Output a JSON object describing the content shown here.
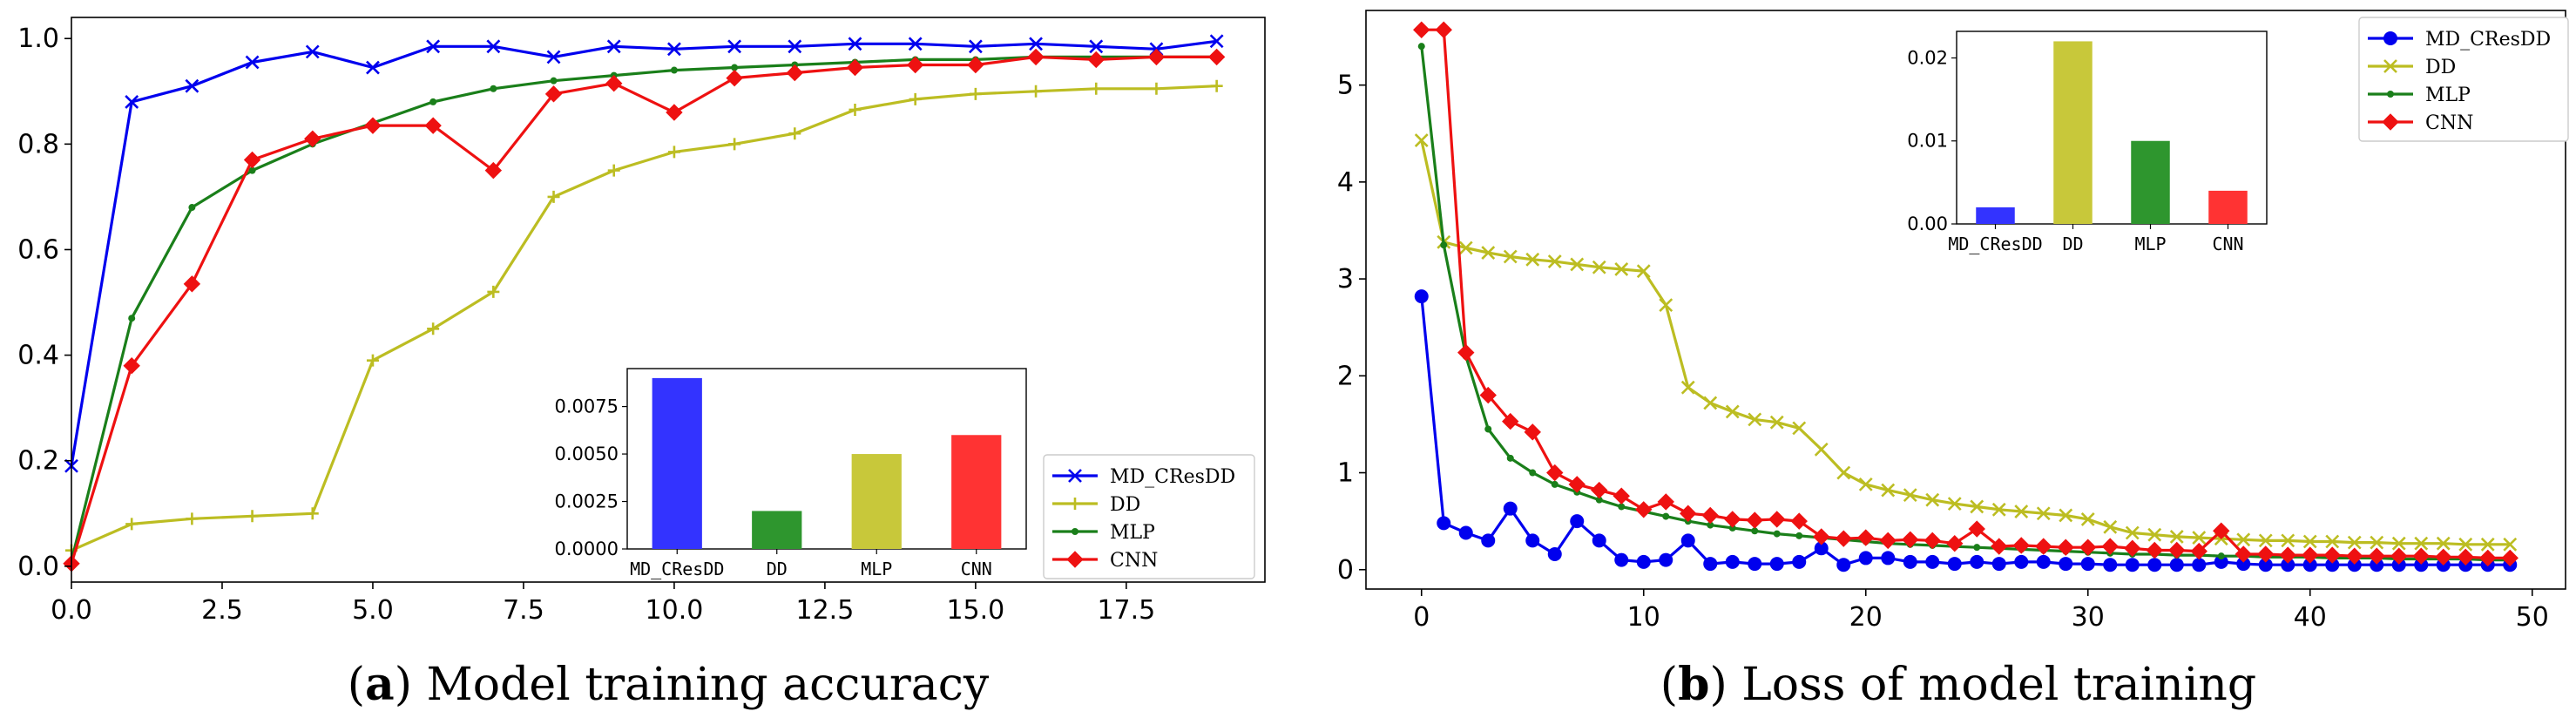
{
  "colors": {
    "MD_CResDD": "#0000ee",
    "DD": "#bcbd22",
    "MLP": "#1a7f1a",
    "CNN": "#ee1111"
  },
  "chart_data": [
    {
      "id": "accuracy",
      "type": "line",
      "caption_letter": "a",
      "caption_open": "(",
      "caption_close": ")",
      "caption_text": " Model training accuracy",
      "xlim": [
        0,
        19.8
      ],
      "ylim": [
        -0.03,
        1.04
      ],
      "xticks": [
        0,
        2.5,
        5,
        7.5,
        10,
        12.5,
        15,
        17.5
      ],
      "xtick_labels": [
        "0.0",
        "2.5",
        "5.0",
        "7.5",
        "10.0",
        "12.5",
        "15.0",
        "17.5"
      ],
      "yticks": [
        0,
        0.2,
        0.4,
        0.6,
        0.8,
        1.0
      ],
      "ytick_labels": [
        "0.0",
        "0.2",
        "0.4",
        "0.6",
        "0.8",
        "1.0"
      ],
      "legend_position": "lower-right",
      "series": [
        {
          "name": "MD_CResDD",
          "marker": "x",
          "x": [
            0,
            1,
            2,
            3,
            4,
            5,
            6,
            7,
            8,
            9,
            10,
            11,
            12,
            13,
            14,
            15,
            16,
            17,
            18,
            19
          ],
          "values": [
            0.19,
            0.88,
            0.91,
            0.955,
            0.975,
            0.945,
            0.985,
            0.985,
            0.965,
            0.985,
            0.98,
            0.985,
            0.985,
            0.99,
            0.99,
            0.985,
            0.99,
            0.985,
            0.98,
            0.995
          ]
        },
        {
          "name": "DD",
          "marker": "plus",
          "x": [
            0,
            1,
            2,
            3,
            4,
            5,
            6,
            7,
            8,
            9,
            10,
            11,
            12,
            13,
            14,
            15,
            16,
            17,
            18,
            19
          ],
          "values": [
            0.03,
            0.08,
            0.09,
            0.095,
            0.1,
            0.39,
            0.45,
            0.52,
            0.7,
            0.75,
            0.785,
            0.8,
            0.82,
            0.865,
            0.885,
            0.895,
            0.9,
            0.905,
            0.905,
            0.91
          ]
        },
        {
          "name": "MLP",
          "marker": "dot",
          "x": [
            0,
            1,
            2,
            3,
            4,
            5,
            6,
            7,
            8,
            9,
            10,
            11,
            12,
            13,
            14,
            15,
            16,
            17,
            18,
            19
          ],
          "values": [
            0.01,
            0.47,
            0.68,
            0.75,
            0.8,
            0.84,
            0.88,
            0.905,
            0.92,
            0.93,
            0.94,
            0.945,
            0.95,
            0.955,
            0.96,
            0.96,
            0.965,
            0.965,
            0.965,
            0.965
          ]
        },
        {
          "name": "CNN",
          "marker": "diamond",
          "x": [
            0,
            1,
            2,
            3,
            4,
            5,
            6,
            7,
            8,
            9,
            10,
            11,
            12,
            13,
            14,
            15,
            16,
            17,
            18,
            19
          ],
          "values": [
            0.005,
            0.38,
            0.535,
            0.77,
            0.81,
            0.835,
            0.835,
            0.75,
            0.895,
            0.915,
            0.86,
            0.925,
            0.935,
            0.945,
            0.95,
            0.95,
            0.965,
            0.96,
            0.965,
            0.965
          ]
        }
      ],
      "inset": {
        "type": "bar",
        "categories": [
          "MD_CResDD",
          "DD",
          "MLP",
          "CNN"
        ],
        "values": [
          0.009,
          0.002,
          0.005,
          0.006
        ],
        "bar_colors": [
          "#3333ff",
          "#2e962e",
          "#c8c83a",
          "#ff3333"
        ],
        "ylim": [
          0,
          0.0095
        ],
        "yticks": [
          0,
          0.0025,
          0.005,
          0.0075
        ],
        "ytick_labels": [
          "0.0000",
          "0.0025",
          "0.0050",
          "0.0075"
        ]
      }
    },
    {
      "id": "loss",
      "type": "line",
      "caption_letter": "b",
      "caption_open": "(",
      "caption_close": ")",
      "caption_text": " Loss of model training",
      "xlim": [
        -2.5,
        51.5
      ],
      "ylim": [
        -0.2,
        5.77
      ],
      "xticks": [
        0,
        10,
        20,
        30,
        40,
        50
      ],
      "xtick_labels": [
        "0",
        "10",
        "20",
        "30",
        "40",
        "50"
      ],
      "yticks": [
        0,
        1,
        2,
        3,
        4,
        5
      ],
      "ytick_labels": [
        "0",
        "1",
        "2",
        "3",
        "4",
        "5"
      ],
      "legend_position": "upper-right",
      "series": [
        {
          "name": "MD_CResDD",
          "marker": "dot",
          "x": [
            0,
            1,
            2,
            3,
            4,
            5,
            6,
            7,
            8,
            9,
            10,
            11,
            12,
            13,
            14,
            15,
            16,
            17,
            18,
            19,
            20,
            21,
            22,
            23,
            24,
            25,
            26,
            27,
            28,
            29,
            30,
            31,
            32,
            33,
            34,
            35,
            36,
            37,
            38,
            39,
            40,
            41,
            42,
            43,
            44,
            45,
            46,
            47,
            48,
            49
          ],
          "values": [
            2.82,
            0.48,
            0.38,
            0.3,
            0.63,
            0.3,
            0.16,
            0.5,
            0.3,
            0.1,
            0.08,
            0.1,
            0.3,
            0.06,
            0.08,
            0.06,
            0.06,
            0.08,
            0.22,
            0.05,
            0.12,
            0.12,
            0.08,
            0.08,
            0.06,
            0.08,
            0.06,
            0.08,
            0.08,
            0.06,
            0.06,
            0.05,
            0.05,
            0.05,
            0.05,
            0.05,
            0.08,
            0.06,
            0.05,
            0.05,
            0.05,
            0.05,
            0.05,
            0.05,
            0.05,
            0.05,
            0.05,
            0.05,
            0.05,
            0.05
          ]
        },
        {
          "name": "DD",
          "marker": "x",
          "x": [
            0,
            1,
            2,
            3,
            4,
            5,
            6,
            7,
            8,
            9,
            10,
            11,
            12,
            13,
            14,
            15,
            16,
            17,
            18,
            19,
            20,
            21,
            22,
            23,
            24,
            25,
            26,
            27,
            28,
            29,
            30,
            31,
            32,
            33,
            34,
            35,
            36,
            37,
            38,
            39,
            40,
            41,
            42,
            43,
            44,
            45,
            46,
            47,
            48,
            49
          ],
          "values": [
            4.43,
            3.38,
            3.32,
            3.27,
            3.23,
            3.2,
            3.18,
            3.15,
            3.12,
            3.1,
            3.08,
            2.73,
            1.88,
            1.72,
            1.63,
            1.55,
            1.52,
            1.46,
            1.24,
            1.0,
            0.88,
            0.82,
            0.77,
            0.72,
            0.68,
            0.65,
            0.62,
            0.6,
            0.58,
            0.56,
            0.52,
            0.44,
            0.38,
            0.36,
            0.34,
            0.33,
            0.32,
            0.31,
            0.3,
            0.3,
            0.29,
            0.29,
            0.28,
            0.28,
            0.27,
            0.27,
            0.27,
            0.26,
            0.26,
            0.26
          ]
        },
        {
          "name": "MLP",
          "marker": "dot",
          "x": [
            0,
            1,
            2,
            3,
            4,
            5,
            6,
            7,
            8,
            9,
            10,
            11,
            12,
            13,
            14,
            15,
            16,
            17,
            18,
            19,
            20,
            21,
            22,
            23,
            24,
            25,
            26,
            27,
            28,
            29,
            30,
            31,
            32,
            33,
            34,
            35,
            36,
            37,
            38,
            39,
            40,
            41,
            42,
            43,
            44,
            45,
            46,
            47,
            48,
            49
          ],
          "values": [
            5.4,
            3.35,
            2.2,
            1.45,
            1.15,
            1.0,
            0.88,
            0.8,
            0.72,
            0.65,
            0.6,
            0.55,
            0.5,
            0.46,
            0.43,
            0.4,
            0.37,
            0.35,
            0.33,
            0.31,
            0.29,
            0.27,
            0.26,
            0.25,
            0.24,
            0.23,
            0.22,
            0.21,
            0.2,
            0.19,
            0.18,
            0.17,
            0.16,
            0.16,
            0.15,
            0.15,
            0.14,
            0.14,
            0.13,
            0.13,
            0.13,
            0.12,
            0.12,
            0.12,
            0.11,
            0.11,
            0.11,
            0.11,
            0.1,
            0.1
          ]
        },
        {
          "name": "CNN",
          "marker": "diamond",
          "x": [
            0,
            1,
            2,
            3,
            4,
            5,
            6,
            7,
            8,
            9,
            10,
            11,
            12,
            13,
            14,
            15,
            16,
            17,
            18,
            19,
            20,
            21,
            22,
            23,
            24,
            25,
            26,
            27,
            28,
            29,
            30,
            31,
            32,
            33,
            34,
            35,
            36,
            37,
            38,
            39,
            40,
            41,
            42,
            43,
            44,
            45,
            46,
            47,
            48,
            49
          ],
          "values": [
            5.57,
            5.57,
            2.24,
            1.8,
            1.53,
            1.42,
            1.0,
            0.88,
            0.82,
            0.76,
            0.62,
            0.7,
            0.58,
            0.56,
            0.52,
            0.51,
            0.52,
            0.5,
            0.34,
            0.32,
            0.33,
            0.3,
            0.31,
            0.3,
            0.27,
            0.42,
            0.24,
            0.25,
            0.24,
            0.23,
            0.23,
            0.24,
            0.22,
            0.2,
            0.2,
            0.19,
            0.4,
            0.16,
            0.16,
            0.15,
            0.15,
            0.15,
            0.14,
            0.14,
            0.14,
            0.14,
            0.13,
            0.13,
            0.12,
            0.12
          ]
        }
      ],
      "inset": {
        "type": "bar",
        "categories": [
          "MD_CResDD",
          "DD",
          "MLP",
          "CNN"
        ],
        "values": [
          0.002,
          0.022,
          0.01,
          0.004
        ],
        "bar_colors": [
          "#3333ff",
          "#c8c83a",
          "#2e962e",
          "#ff3333"
        ],
        "ylim": [
          0,
          0.0232
        ],
        "yticks": [
          0,
          0.01,
          0.02
        ],
        "ytick_labels": [
          "0.00",
          "0.01",
          "0.02"
        ]
      }
    }
  ]
}
